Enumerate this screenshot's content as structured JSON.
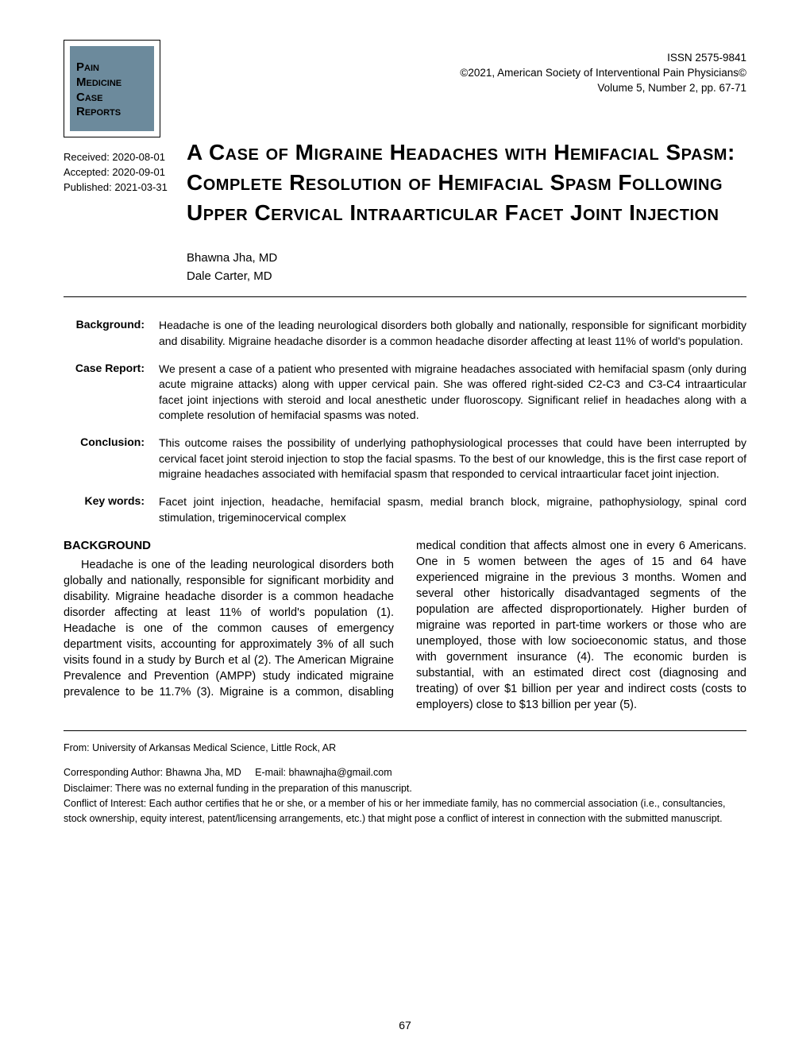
{
  "journal": {
    "line1": "Pain",
    "line2": "Medicine",
    "line3": "Case",
    "line4": "Reports"
  },
  "issn": {
    "line1": "ISSN 2575-9841",
    "line2": "©2021, American Society of Interventional Pain Physicians©",
    "line3": "Volume 5, Number 2, pp. 67-71"
  },
  "dates": {
    "received": "Received: 2020-08-01",
    "accepted": "Accepted: 2020-09-01",
    "published": "Published: 2021-03-31"
  },
  "title": "A Case of Migraine Headaches with Hemifacial Spasm: Complete Resolution of Hemifacial Spasm Following Upper Cervical Intraarticular Facet Joint Injection",
  "authors": {
    "a1": "Bhawna Jha, MD",
    "a2": "Dale Carter, MD"
  },
  "abstract": {
    "background_label": "Background:",
    "background_text": "Headache is one of the leading neurological disorders both globally and nationally, responsible for significant morbidity and disability. Migraine headache disorder is a common headache disorder affecting at least 11% of world's population.",
    "case_label": "Case Report:",
    "case_text": "We present a case of a patient who presented with migraine headaches associated with hemifacial spasm (only during acute migraine attacks) along with upper cervical pain. She was offered right-sided C2-C3 and C3-C4 intraarticular facet joint injections with steroid and local anesthetic under fluoroscopy. Significant relief in headaches along with a complete resolution of hemifacial spasms was noted.",
    "conclusion_label": "Conclusion:",
    "conclusion_text": "This outcome raises the possibility of underlying pathophysiological processes that could have been interrupted by cervical facet joint steroid injection to stop the facial spasms. To the best of our knowledge, this is the first case report of migraine headaches associated with hemifacial spasm that responded to cervical intraarticular facet joint injection.",
    "keywords_label": "Key words:",
    "keywords_text": "Facet joint injection, headache, hemifacial spasm, medial branch block, migraine, pathophysiology, spinal cord stimulation, trigeminocervical complex"
  },
  "body": {
    "heading": "BACKGROUND",
    "text": "Headache is one of the leading neurological disorders both globally and nationally, responsible for significant morbidity and disability. Migraine headache disorder is a common headache disorder affecting at least 11% of world's population (1). Headache is one of the common causes of emergency department visits, accounting for approximately 3% of all such visits found in a study by Burch et al (2). The American Migraine Prevalence and Prevention (AMPP) study indicated migraine prevalence to be 11.7% (3). Migraine is a common, disabling medical condition that affects almost one in every 6 Americans. One in 5 women between the ages of 15 and 64 have experienced migraine in the previous 3 months. Women and several other historically disadvantaged segments of the population are affected disproportionately. Higher burden of migraine was reported in part-time workers or those who are unemployed, those with low socioeconomic status, and those with government insurance (4). The economic burden is substantial, with an estimated direct cost (diagnosing and treating) of over $1 billion per year and indirect costs (costs to employers) close to $13 billion per year (5)."
  },
  "footer": {
    "from": "From: University of Arkansas Medical Science, Little Rock, AR",
    "corresponding": "Corresponding Author: Bhawna Jha, MD",
    "email_label": "E-mail: bhawnajha@gmail.com",
    "disclaimer": "Disclaimer: There was no external funding in the preparation of this manuscript.",
    "conflict": "Conflict of Interest: Each author certifies that he or she, or a member of his or her immediate family, has no commercial association (i.e., consultancies, stock ownership, equity interest, patent/licensing arrangements, etc.) that might pose a conflict of interest in connection with the submitted manuscript."
  },
  "page": "67",
  "colors": {
    "box_bg": "#6c8a9c"
  }
}
